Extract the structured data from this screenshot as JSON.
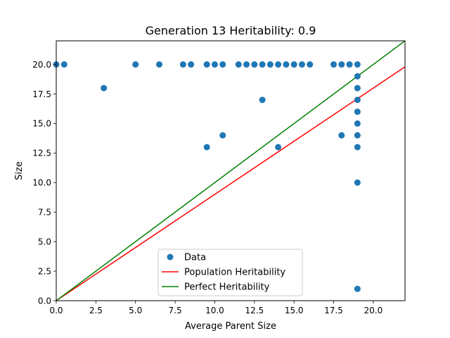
{
  "chart_data": {
    "type": "scatter",
    "title": "Generation 13 Heritability: 0.9",
    "xlabel": "Average Parent Size",
    "ylabel": "Size",
    "xlim": [
      0,
      22
    ],
    "ylim": [
      0,
      22
    ],
    "x_ticks": [
      0.0,
      2.5,
      5.0,
      7.5,
      10.0,
      12.5,
      15.0,
      17.5,
      20.0
    ],
    "x_tick_labels": [
      "0.0",
      "2.5",
      "5.0",
      "7.5",
      "10.0",
      "12.5",
      "15.0",
      "17.5",
      "20.0"
    ],
    "y_ticks": [
      0.0,
      2.5,
      5.0,
      7.5,
      10.0,
      12.5,
      15.0,
      17.5,
      20.0
    ],
    "y_tick_labels": [
      "0.0",
      "2.5",
      "5.0",
      "7.5",
      "10.0",
      "12.5",
      "15.0",
      "17.5",
      "20.0"
    ],
    "grid": false,
    "legend_position": "lower center",
    "series": [
      {
        "name": "Data",
        "kind": "scatter",
        "color": "#1f77b4",
        "points": [
          [
            0,
            20
          ],
          [
            0.5,
            20
          ],
          [
            3,
            18
          ],
          [
            5,
            20
          ],
          [
            6.5,
            20
          ],
          [
            8,
            20
          ],
          [
            8.5,
            20
          ],
          [
            9.5,
            20
          ],
          [
            9.5,
            13
          ],
          [
            10,
            20
          ],
          [
            10.5,
            20
          ],
          [
            10.5,
            14
          ],
          [
            11.5,
            20
          ],
          [
            12,
            20
          ],
          [
            12.5,
            20
          ],
          [
            13,
            20
          ],
          [
            13,
            17
          ],
          [
            13.5,
            20
          ],
          [
            14,
            20
          ],
          [
            14,
            13
          ],
          [
            14.5,
            20
          ],
          [
            15,
            20
          ],
          [
            15.5,
            20
          ],
          [
            16,
            20
          ],
          [
            17.5,
            20
          ],
          [
            18,
            20
          ],
          [
            18,
            14
          ],
          [
            18.5,
            20
          ],
          [
            19,
            20
          ],
          [
            19,
            19
          ],
          [
            19,
            18
          ],
          [
            19,
            17
          ],
          [
            19,
            16
          ],
          [
            19,
            15
          ],
          [
            19,
            14
          ],
          [
            19,
            13
          ],
          [
            19,
            10
          ],
          [
            19,
            1
          ]
        ]
      },
      {
        "name": "Population Heritability",
        "kind": "line",
        "color": "#ff0000",
        "slope": 0.9,
        "x": [
          0,
          22
        ],
        "y": [
          0,
          19.8
        ]
      },
      {
        "name": "Perfect Heritability",
        "kind": "line",
        "color": "#008000",
        "slope": 1.0,
        "x": [
          0,
          22
        ],
        "y": [
          0,
          22
        ]
      }
    ]
  }
}
